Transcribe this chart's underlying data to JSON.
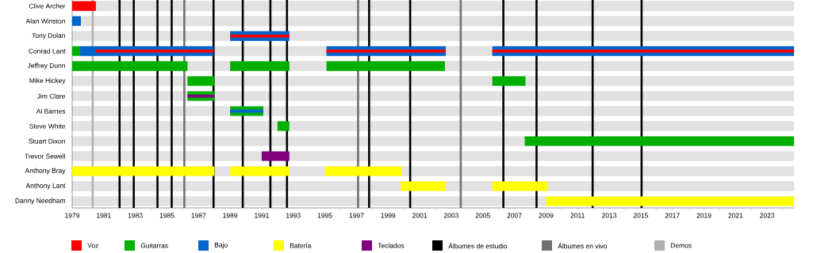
{
  "chart_data": {
    "type": "bar",
    "orientation": "horizontal",
    "grid": "y",
    "legend": "bottom",
    "categories": [
      "Clive Archer",
      "Alan Winston",
      "Tony Dolan",
      "Conrad Lant",
      "Jeffrey Dunn",
      "Mike Hickey",
      "Jim Clare",
      "Al Barnes",
      "Steve White",
      "Stuart Dixon",
      "Trevor Sewell",
      "Anthony Bray",
      "Anthony Lant",
      "Danny Needham"
    ],
    "xlim": [
      1979,
      2024.7
    ],
    "xticks": [
      1979,
      {
        "value": 1980,
        "label": null
      },
      1981,
      {
        "value": 1982,
        "label": null
      },
      1983,
      {
        "value": 1984,
        "label": null
      },
      1985,
      {
        "value": 1986,
        "label": null
      },
      1987,
      {
        "value": 1988,
        "label": null
      },
      1989,
      {
        "value": 1990,
        "label": null
      },
      1991,
      {
        "value": 1992,
        "label": null
      },
      1993,
      {
        "value": 1994,
        "label": null
      },
      1995,
      {
        "value": 1996,
        "label": null
      },
      1997,
      {
        "value": 1998,
        "label": null
      },
      1999,
      {
        "value": 2000,
        "label": null
      },
      2001,
      {
        "value": 2002,
        "label": null
      },
      2003,
      {
        "value": 2004,
        "label": null
      },
      2005,
      {
        "value": 2006,
        "label": null
      },
      2007,
      {
        "value": 2008,
        "label": null
      },
      2009,
      {
        "value": 2010,
        "label": null
      },
      2011,
      {
        "value": 2012,
        "label": null
      },
      2013,
      {
        "value": 2014,
        "label": null
      },
      2015,
      {
        "value": 2016,
        "label": null
      },
      2017,
      {
        "value": 2018,
        "label": null
      },
      2019,
      {
        "value": 2020,
        "label": null
      },
      2021,
      {
        "value": 2022,
        "label": null
      },
      2023,
      {
        "value": 2024,
        "label": null
      }
    ],
    "series": [
      {
        "name": "Voz",
        "color": "#ff0000",
        "base": [
          1979,
          null,
          null,
          null,
          null,
          null,
          null,
          null,
          null,
          null,
          null,
          null,
          null,
          null
        ],
        "values": [
          1.5,
          null,
          null,
          null,
          null,
          null,
          null,
          null,
          null,
          null,
          null,
          null,
          null,
          null
        ]
      },
      {
        "name": "Guitarras",
        "color": "#00b000",
        "base": [
          null,
          null,
          null,
          1979,
          1979,
          1986.3,
          1986.3,
          1989,
          1992,
          2007.65,
          null,
          null,
          null,
          null
        ],
        "values": [
          null,
          null,
          null,
          0.5,
          7.3,
          1.7,
          1.7,
          2.1,
          0.75,
          17.05,
          null,
          null,
          null,
          null
        ]
      },
      {
        "name": "Bajo",
        "color": "#0066cc",
        "base": [
          null,
          1979,
          1989,
          1979.5,
          null,
          null,
          null,
          1989,
          null,
          null,
          null,
          null,
          null,
          null
        ],
        "values": [
          null,
          0.55,
          3.75,
          8.45,
          null,
          null,
          null,
          2.1,
          null,
          null,
          null,
          null,
          null,
          null
        ]
      },
      {
        "name": "Batería",
        "color": "#ffff00",
        "base": [
          null,
          null,
          null,
          null,
          null,
          null,
          null,
          null,
          null,
          null,
          null,
          1979,
          1999.8,
          2009
        ],
        "values": [
          null,
          null,
          null,
          null,
          null,
          null,
          null,
          null,
          null,
          null,
          null,
          9,
          2.85,
          15.7
        ]
      },
      {
        "name": "Teclados",
        "color": "#800080",
        "base": [
          null,
          null,
          null,
          null,
          null,
          null,
          1986.3,
          null,
          null,
          null,
          1991,
          null,
          null,
          null
        ],
        "values": [
          null,
          null,
          null,
          null,
          null,
          null,
          1.7,
          null,
          null,
          null,
          1.75,
          null,
          null,
          null
        ]
      },
      {
        "color": "#ff0000",
        "base": [
          null,
          null,
          1989,
          1980.5,
          null,
          null,
          null,
          null,
          null,
          null,
          null,
          null,
          null,
          null
        ],
        "values": [
          null,
          null,
          3.75,
          7.45,
          null,
          null,
          null,
          null,
          null,
          null,
          null,
          null,
          null,
          null
        ]
      },
      {
        "color": "#00b000",
        "base": [
          null,
          null,
          null,
          null,
          1989,
          2005.6,
          null,
          null,
          null,
          null,
          null,
          null,
          null,
          null
        ],
        "values": [
          null,
          null,
          null,
          null,
          3.75,
          2.1,
          null,
          null,
          null,
          null,
          null,
          null,
          null,
          null
        ]
      },
      {
        "color": "#0066cc",
        "base": [
          null,
          null,
          null,
          1995.1,
          null,
          null,
          null,
          null,
          null,
          null,
          null,
          null,
          null,
          null
        ],
        "values": [
          null,
          null,
          null,
          7.55,
          null,
          null,
          null,
          null,
          null,
          null,
          null,
          null,
          null,
          null
        ]
      },
      {
        "color": "#ffff00",
        "base": [
          null,
          null,
          null,
          null,
          null,
          null,
          null,
          null,
          null,
          null,
          null,
          1989,
          2005.6,
          null
        ],
        "values": [
          null,
          null,
          null,
          null,
          null,
          null,
          null,
          null,
          null,
          null,
          null,
          3.75,
          3.5,
          null
        ]
      },
      {
        "color": "#ff0000",
        "base": [
          null,
          null,
          null,
          1995.1,
          null,
          null,
          null,
          null,
          null,
          null,
          null,
          null,
          null,
          null
        ],
        "values": [
          null,
          null,
          null,
          7.55,
          null,
          null,
          null,
          null,
          null,
          null,
          null,
          null,
          null,
          null
        ]
      },
      {
        "color": "#00b000",
        "base": [
          null,
          null,
          null,
          null,
          1995.1,
          null,
          null,
          null,
          null,
          null,
          null,
          null,
          null,
          null
        ],
        "values": [
          null,
          null,
          null,
          null,
          7.5,
          null,
          null,
          null,
          null,
          null,
          null,
          null,
          null,
          null
        ]
      },
      {
        "color": "#0066cc",
        "base": [
          null,
          null,
          null,
          2005.6,
          null,
          null,
          null,
          null,
          null,
          null,
          null,
          null,
          null,
          null
        ],
        "values": [
          null,
          null,
          null,
          19.1,
          null,
          null,
          null,
          null,
          null,
          null,
          null,
          null,
          null,
          null
        ]
      },
      {
        "color": "#ff0000",
        "base": [
          null,
          null,
          null,
          2005.6,
          null,
          null,
          null,
          null,
          null,
          null,
          null,
          null,
          null,
          null
        ],
        "values": [
          null,
          null,
          null,
          19.1,
          null,
          null,
          null,
          null,
          null,
          null,
          null,
          null,
          null,
          null
        ]
      },
      {
        "color": "#ffff00",
        "base": [
          null,
          null,
          null,
          null,
          null,
          null,
          null,
          null,
          null,
          null,
          null,
          1995,
          null,
          null
        ],
        "values": [
          null,
          null,
          null,
          null,
          null,
          null,
          null,
          null,
          null,
          null,
          null,
          4.85,
          null,
          null
        ]
      }
    ],
    "ref_lines": [
      {
        "axis": "x",
        "value": 1982.0,
        "color": "#000000",
        "label": "Álbumes de estudio"
      },
      {
        "axis": "x",
        "value": 1982.9,
        "color": "#000000"
      },
      {
        "axis": "x",
        "value": 1984.4,
        "color": "#000000"
      },
      {
        "axis": "x",
        "value": 1985.3,
        "color": "#000000"
      },
      {
        "axis": "x",
        "value": 1987.95,
        "color": "#000000"
      },
      {
        "axis": "x",
        "value": 1989.8,
        "color": "#000000"
      },
      {
        "axis": "x",
        "value": 1991.55,
        "color": "#000000"
      },
      {
        "axis": "x",
        "value": 1992.6,
        "color": "#000000"
      },
      {
        "axis": "x",
        "value": 1997.8,
        "color": "#000000"
      },
      {
        "axis": "x",
        "value": 2000.4,
        "color": "#000000"
      },
      {
        "axis": "x",
        "value": 2006.3,
        "color": "#000000"
      },
      {
        "axis": "x",
        "value": 2008.4,
        "color": "#000000"
      },
      {
        "axis": "x",
        "value": 2011.95,
        "color": "#000000"
      },
      {
        "axis": "x",
        "value": 2015.05,
        "color": "#000000"
      },
      {
        "axis": "x",
        "value": 1986.1,
        "color": "#707070",
        "label": "Álbumes en vivo"
      },
      {
        "axis": "x",
        "value": 1997.1,
        "color": "#707070"
      },
      {
        "axis": "x",
        "value": 2003.6,
        "color": "#707070"
      },
      {
        "axis": "x",
        "value": 1980.3,
        "color": "#b0b0b0",
        "label": "Demos"
      }
    ]
  }
}
